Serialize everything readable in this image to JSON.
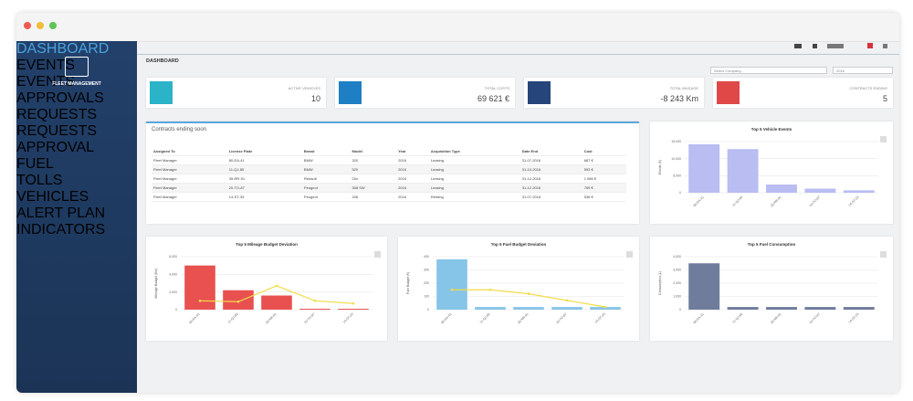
{
  "sidebar": {
    "brand": "FLEET MANAGEMENT",
    "menu": [
      "DASHBOARD",
      "EVENTS",
      "EVENTS APPROVALS",
      "REQUESTS",
      "REQUESTS APPROVAL",
      "FUEL",
      "TOLLS",
      "VEHICLES",
      "ALERT PLAN",
      "INDICATORS"
    ]
  },
  "header": {
    "title": "DASHBOARD",
    "company_select": "Select Company...",
    "year_select": "2016"
  },
  "kpis": [
    {
      "label": "ACTIVE VEHICLES",
      "value": "10",
      "color": "#2bb3c8"
    },
    {
      "label": "TOTAL COSTS",
      "value": "69 621 €",
      "color": "#1f7fc4"
    },
    {
      "label": "TOTAL MILEAGE",
      "value": "-8 243 Km",
      "color": "#26457a"
    },
    {
      "label": "CONTRACTS ENDING",
      "value": "5",
      "color": "#e04848"
    }
  ],
  "table": {
    "title": "Contracts ending soon",
    "columns": [
      "Assigned To",
      "License Plate",
      "Brand",
      "Model",
      "Year",
      "Acquisition Type",
      "Date End",
      "Cost"
    ],
    "rows": [
      [
        "Fleet Manager",
        "80-EA-41",
        "BMW",
        "320",
        "2016",
        "Leasing",
        "31-07-2016",
        "687 €"
      ],
      [
        "Fleet Manager",
        "11-QJ-85",
        "BMW",
        "520",
        "2016",
        "Leasing",
        "31-10-2016",
        "593 €"
      ],
      [
        "Fleet Manager",
        "35-RR-91",
        "Renault",
        "Clio",
        "2016",
        "Leasing",
        "31-12-2016",
        "1 086 €"
      ],
      [
        "Fleet Manager",
        "20-TO-87",
        "Peugeot",
        "308 SW",
        "2016",
        "Leasing",
        "31-12-2016",
        "769 €"
      ],
      [
        "Fleet Manager",
        "14-ST-33",
        "Peugeot",
        "208",
        "2016",
        "Renting",
        "31-07-2016",
        "536 €"
      ]
    ]
  },
  "chart_data": [
    {
      "type": "bar",
      "title": "Top 5 Vehicle Events",
      "ylabel": "Events (€)",
      "categories": [
        "80-EA-41",
        "11-QJ-85",
        "35-RR-91",
        "20-TO-87",
        "14-ST-33"
      ],
      "series": [
        {
          "mark": "bar",
          "color": "#b9bdf2",
          "values": [
            14200,
            12800,
            2400,
            1200,
            700
          ]
        }
      ],
      "ylim": [
        0,
        15000
      ],
      "yticks": [
        0,
        {
          "value": 5000,
          "label": "5,000"
        },
        {
          "value": 10000,
          "label": "10,000"
        },
        {
          "value": 15000,
          "label": "15,000"
        }
      ],
      "grid": true
    },
    {
      "type": "bar",
      "title": "Top 5 Mileage Budget Deviation",
      "ylabel": "Mileage Budget (Km)",
      "categories": [
        "80-EA-41",
        "11-QJ-85",
        "35-RR-91",
        "20-TO-87",
        "14-ST-33"
      ],
      "series": [
        {
          "mark": "bar",
          "color": "#e8514f",
          "values": [
            5000,
            2200,
            1600,
            100,
            100
          ]
        },
        {
          "mark": "line",
          "color": "#f2dc4a",
          "values": [
            1000,
            900,
            2700,
            1000,
            700
          ]
        }
      ],
      "ylim": [
        0,
        6000
      ],
      "yticks": [
        0,
        {
          "value": 2000,
          "label": "2,000"
        },
        {
          "value": 4000,
          "label": "4,000"
        },
        {
          "value": 6000,
          "label": "6,000"
        }
      ],
      "grid": true
    },
    {
      "type": "bar",
      "title": "Top 5 Fuel Budget Deviation",
      "ylabel": "Fuel Budget (€)",
      "categories": [
        "80-EA-41",
        "11-QJ-85",
        "35-RR-91",
        "20-TO-87",
        "14-ST-33"
      ],
      "series": [
        {
          "mark": "bar",
          "color": "#86c4e8",
          "values": [
            380,
            20,
            20,
            20,
            20
          ]
        },
        {
          "mark": "line",
          "color": "#f2dc4a",
          "values": [
            150,
            150,
            120,
            70,
            20
          ]
        }
      ],
      "ylim": [
        0,
        400
      ],
      "yticks": [
        0,
        100,
        200,
        300,
        400
      ],
      "grid": true
    },
    {
      "type": "bar",
      "title": "Top 5 Fuel Consumption",
      "ylabel": "Consumption (L)",
      "categories": [
        "80-EA-41",
        "11-QJ-85",
        "35-RR-91",
        "20-TO-87",
        "14-ST-33"
      ],
      "series": [
        {
          "mark": "bar",
          "color": "#6f7c9c",
          "values": [
            3500,
            200,
            200,
            200,
            200
          ]
        }
      ],
      "ylim": [
        0,
        4000
      ],
      "yticks": [
        0,
        {
          "value": 1000,
          "label": "1,000"
        },
        {
          "value": 2000,
          "label": "2,000"
        },
        {
          "value": 3000,
          "label": "3,000"
        },
        {
          "value": 4000,
          "label": "4,000"
        }
      ],
      "grid": true
    }
  ]
}
